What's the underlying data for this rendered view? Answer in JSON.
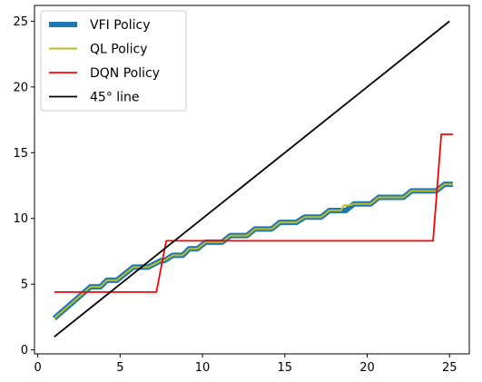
{
  "chart_data": {
    "type": "line",
    "title": "",
    "xlabel": "",
    "ylabel": "",
    "xlim": [
      -0.2,
      26.2
    ],
    "ylim": [
      -0.3,
      26.2
    ],
    "xticks": [
      0,
      5,
      10,
      15,
      20,
      25
    ],
    "yticks": [
      0,
      5,
      10,
      15,
      20,
      25
    ],
    "grid": false,
    "legend": "upper-left",
    "series": [
      {
        "name": "VFI Policy",
        "color": "#1f77b4",
        "style": "step",
        "points": [
          [
            1,
            2.4
          ],
          [
            3.2,
            4.8
          ],
          [
            3.8,
            4.8
          ],
          [
            4.2,
            5.3
          ],
          [
            4.8,
            5.3
          ],
          [
            5.8,
            6.3
          ],
          [
            6.7,
            6.3
          ],
          [
            7.5,
            6.8
          ],
          [
            7.7,
            6.8
          ],
          [
            8.2,
            7.2
          ],
          [
            8.8,
            7.2
          ],
          [
            9.2,
            7.7
          ],
          [
            9.7,
            7.7
          ],
          [
            10.2,
            8.2
          ],
          [
            11.2,
            8.2
          ],
          [
            11.7,
            8.7
          ],
          [
            12.7,
            8.7
          ],
          [
            13.2,
            9.2
          ],
          [
            14.2,
            9.2
          ],
          [
            14.7,
            9.7
          ],
          [
            15.7,
            9.7
          ],
          [
            16.2,
            10.1
          ],
          [
            17.2,
            10.1
          ],
          [
            17.7,
            10.6
          ],
          [
            18.7,
            10.6
          ],
          [
            19.2,
            11.1
          ],
          [
            20.2,
            11.1
          ],
          [
            20.7,
            11.6
          ],
          [
            22.2,
            11.6
          ],
          [
            22.7,
            12.1
          ],
          [
            24.2,
            12.1
          ],
          [
            24.7,
            12.6
          ],
          [
            25.2,
            12.6
          ]
        ]
      },
      {
        "name": "QL Policy",
        "color": "#bcbd22",
        "style": "step",
        "points": [
          [
            1,
            2.4
          ],
          [
            3.2,
            4.8
          ],
          [
            3.8,
            4.8
          ],
          [
            4.2,
            5.3
          ],
          [
            4.8,
            5.3
          ],
          [
            5.8,
            6.3
          ],
          [
            6.7,
            6.3
          ],
          [
            7.5,
            6.8
          ],
          [
            7.7,
            6.8
          ],
          [
            8.2,
            7.2
          ],
          [
            8.8,
            7.2
          ],
          [
            9.2,
            7.7
          ],
          [
            9.7,
            7.7
          ],
          [
            10.2,
            8.2
          ],
          [
            11.2,
            8.2
          ],
          [
            11.7,
            8.7
          ],
          [
            12.7,
            8.7
          ],
          [
            13.2,
            9.2
          ],
          [
            14.2,
            9.2
          ],
          [
            14.7,
            9.7
          ],
          [
            15.7,
            9.7
          ],
          [
            16.2,
            10.1
          ],
          [
            17.2,
            10.1
          ],
          [
            17.7,
            10.6
          ],
          [
            18.4,
            10.6
          ],
          [
            18.6,
            11.0
          ],
          [
            18.9,
            11.0
          ],
          [
            19.2,
            11.1
          ],
          [
            20.2,
            11.1
          ],
          [
            20.7,
            11.6
          ],
          [
            22.2,
            11.6
          ],
          [
            22.7,
            12.1
          ],
          [
            24.2,
            12.1
          ],
          [
            24.7,
            12.6
          ],
          [
            25.2,
            12.6
          ]
        ]
      },
      {
        "name": "DQN Policy",
        "color": "#ff0000",
        "style": "line",
        "points": [
          [
            1,
            4.4
          ],
          [
            7.2,
            4.4
          ],
          [
            7.8,
            8.3
          ],
          [
            24,
            8.3
          ],
          [
            24.5,
            16.4
          ],
          [
            25.2,
            16.4
          ]
        ]
      },
      {
        "name": "45° line",
        "color": "#000000",
        "style": "line",
        "points": [
          [
            1,
            1
          ],
          [
            25,
            25
          ]
        ]
      }
    ]
  }
}
